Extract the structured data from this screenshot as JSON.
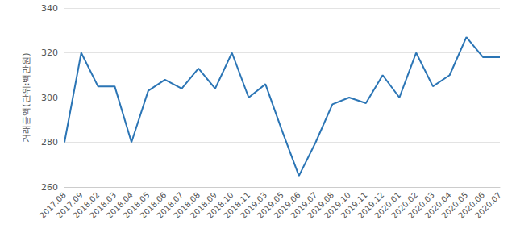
{
  "chart_data": {
    "type": "line",
    "y_label": "거래금액(단위:백만원)",
    "categories": [
      "2017.08",
      "2017.09",
      "2018.02",
      "2018.03",
      "2018.04",
      "2018.05",
      "2018.06",
      "2018.07",
      "2018.08",
      "2018.09",
      "2018.10",
      "2018.11",
      "2019.03",
      "2019.05",
      "2019.06",
      "2019.07",
      "2019.08",
      "2019.10",
      "2019.11",
      "2019.12",
      "2020.01",
      "2020.02",
      "2020.03",
      "2020.04",
      "2020.05",
      "2020.06",
      "2020.07"
    ],
    "values": [
      280,
      320,
      305,
      305,
      280,
      303,
      308,
      304,
      313,
      304,
      320,
      300,
      306,
      285,
      265,
      280,
      297,
      300,
      297.5,
      310,
      300,
      320,
      305,
      310,
      327,
      318,
      318
    ],
    "color": "#2b75b5",
    "ylim": [
      260,
      340
    ],
    "yticks": [
      260,
      280,
      300,
      320,
      340
    ],
    "grid": true
  }
}
